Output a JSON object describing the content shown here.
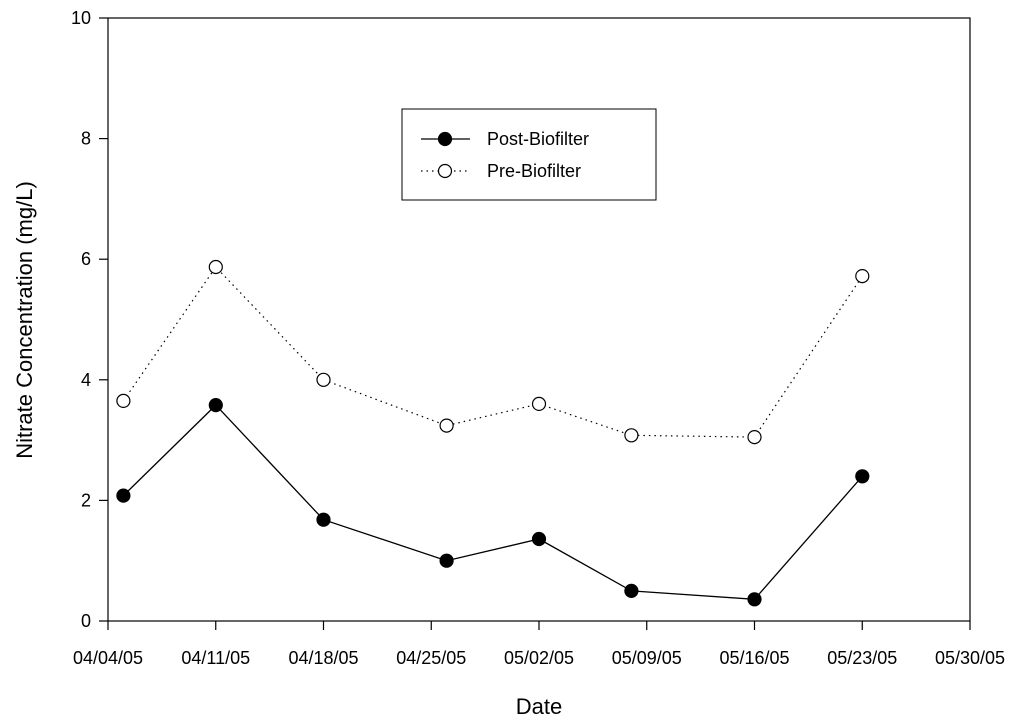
{
  "chart_data": {
    "type": "line",
    "title": "",
    "xlabel": "Date",
    "ylabel": "Nitrate Concentration (mg/L)",
    "x_ticks": [
      "04/04/05",
      "04/11/05",
      "04/18/05",
      "04/25/05",
      "05/02/05",
      "05/09/05",
      "05/16/05",
      "05/23/05",
      "05/30/05"
    ],
    "xlim": [
      "2005-04-04",
      "2005-05-30"
    ],
    "y_ticks": [
      0,
      2,
      4,
      6,
      8,
      10
    ],
    "ylim": [
      0,
      10
    ],
    "grid": false,
    "legend_position": "top-center",
    "series": [
      {
        "name": "Post-Biofilter",
        "marker": "filled-circle",
        "line_style": "solid",
        "x": [
          "2005-04-05",
          "2005-04-11",
          "2005-04-18",
          "2005-04-26",
          "2005-05-02",
          "2005-05-08",
          "2005-05-16",
          "2005-05-23"
        ],
        "y": [
          2.08,
          3.58,
          1.68,
          1.0,
          1.36,
          0.5,
          0.36,
          2.4
        ]
      },
      {
        "name": "Pre-Biofilter",
        "marker": "open-circle",
        "line_style": "dotted",
        "x": [
          "2005-04-05",
          "2005-04-11",
          "2005-04-18",
          "2005-04-26",
          "2005-05-02",
          "2005-05-08",
          "2005-05-16",
          "2005-05-23"
        ],
        "y": [
          3.65,
          5.87,
          4.0,
          3.24,
          3.6,
          3.08,
          3.05,
          5.72
        ]
      }
    ]
  }
}
